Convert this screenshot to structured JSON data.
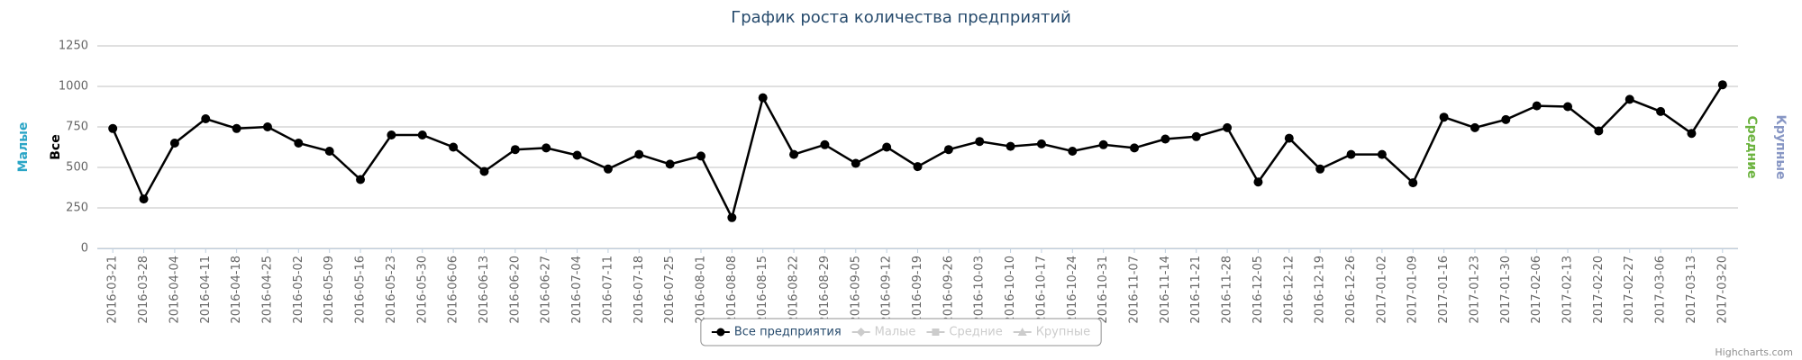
{
  "chart_data": {
    "type": "line",
    "title": "График роста количества предприятий",
    "categories": [
      "2016-03-21",
      "2016-03-28",
      "2016-04-04",
      "2016-04-11",
      "2016-04-18",
      "2016-04-25",
      "2016-05-02",
      "2016-05-09",
      "2016-05-16",
      "2016-05-23",
      "2016-05-30",
      "2016-06-06",
      "2016-06-13",
      "2016-06-20",
      "2016-06-27",
      "2016-07-04",
      "2016-07-11",
      "2016-07-18",
      "2016-07-25",
      "2016-08-01",
      "2016-08-08",
      "2016-08-15",
      "2016-08-22",
      "2016-08-29",
      "2016-09-05",
      "2016-09-12",
      "2016-09-19",
      "2016-09-26",
      "2016-10-03",
      "2016-10-10",
      "2016-10-17",
      "2016-10-24",
      "2016-10-31",
      "2016-11-07",
      "2016-11-14",
      "2016-11-21",
      "2016-11-28",
      "2016-12-05",
      "2016-12-12",
      "2016-12-19",
      "2016-12-26",
      "2017-01-02",
      "2017-01-09",
      "2017-01-16",
      "2017-01-23",
      "2017-01-30",
      "2017-02-06",
      "2017-02-13",
      "2017-02-20",
      "2017-02-27",
      "2017-03-06",
      "2017-03-13",
      "2017-03-20"
    ],
    "series": [
      {
        "name": "Все предприятия",
        "color": "#000000",
        "marker": "circle",
        "visible": true,
        "values": [
          740,
          305,
          650,
          800,
          740,
          750,
          650,
          600,
          425,
          700,
          700,
          625,
          475,
          610,
          620,
          575,
          490,
          580,
          520,
          570,
          190,
          930,
          580,
          640,
          525,
          625,
          505,
          610,
          660,
          630,
          645,
          600,
          640,
          620,
          675,
          690,
          745,
          410,
          680,
          490,
          580,
          580,
          405,
          810,
          745,
          795,
          880,
          875,
          725,
          920,
          845,
          710,
          1010
        ]
      },
      {
        "name": "Малые",
        "color": "#2aa5c6",
        "marker": "diamond",
        "visible": false
      },
      {
        "name": "Средние",
        "color": "#6cb33f",
        "marker": "square",
        "visible": false
      },
      {
        "name": "Крупные",
        "color": "#8796c4",
        "marker": "triangle",
        "visible": false
      }
    ],
    "ylim": [
      0,
      1250
    ],
    "yticks": [
      0,
      250,
      500,
      750,
      1000,
      1250
    ],
    "grid": true,
    "axis_titles": [
      {
        "text": "Малые",
        "color": "#2aa5c6",
        "side": "left"
      },
      {
        "text": "Все",
        "color": "#000000",
        "side": "left"
      },
      {
        "text": "Средние",
        "color": "#6cb33f",
        "side": "right"
      },
      {
        "text": "Крупные",
        "color": "#8796c4",
        "side": "right"
      }
    ],
    "legend": "bottom",
    "credits": "Highcharts.com"
  }
}
